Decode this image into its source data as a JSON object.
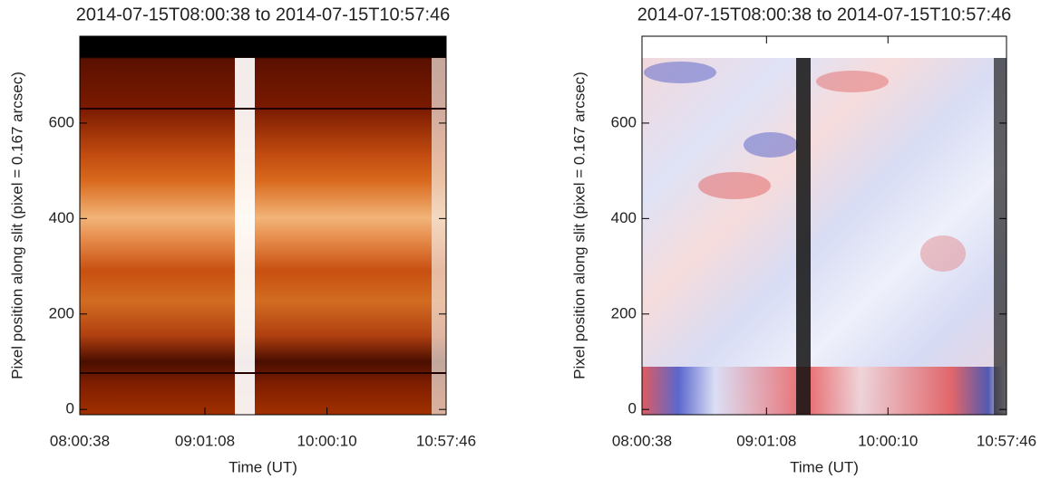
{
  "chart_data": [
    {
      "type": "image",
      "title": "2014-07-15T08:00:38 to 2014-07-15T10:57:46",
      "x_label": "Time (UT)",
      "y_label": "Pixel position along slit (pixel = 0.167 arcsec)",
      "xlim": [
        "08:00:38",
        "10:57:46"
      ],
      "xticks": [
        "08:00:38",
        "09:01:08",
        "10:00:10",
        "10:57:46"
      ],
      "ylim": [
        -11,
        782
      ],
      "yticks": [
        0,
        200,
        400,
        600
      ]
    },
    {
      "type": "image",
      "title": "2014-07-15T08:00:38 to 2014-07-15T10:57:46",
      "x_label": "Time (UT)",
      "y_label": "Pixel position along slit (pixel = 0.167 arcsec)",
      "xlim": [
        "08:00:38",
        "10:57:46"
      ],
      "xticks": [
        "08:00:38",
        "09:01:08",
        "10:00:10",
        "10:57:46"
      ],
      "ylim": [
        -11,
        782
      ],
      "yticks": [
        0,
        200,
        400,
        600
      ]
    }
  ]
}
